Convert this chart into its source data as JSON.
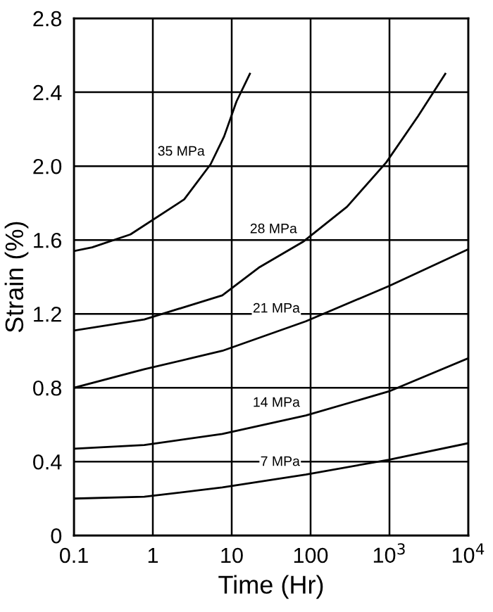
{
  "chart_data": {
    "type": "line",
    "xlabel": "Time (Hr)",
    "ylabel": "Strain (%)",
    "log": "x",
    "xlim": [
      0.1,
      10000
    ],
    "ylim": [
      0,
      2.8
    ],
    "xticks": [
      0.1,
      1,
      10,
      100,
      {
        "value": 1000,
        "label": "10$^{3}$"
      },
      {
        "value": 10000,
        "label": "10$^{4}$"
      }
    ],
    "yticks": [
      0,
      0.4,
      0.8,
      1.2,
      1.6,
      {
        "value": 2,
        "label": "2.0"
      },
      2.4,
      2.8
    ],
    "grid": true,
    "marker": "none",
    "line_style": "solid",
    "series": [
      {
        "name": "35 MPa",
        "color": "#000000",
        "x": [
          0.1,
          0.17,
          0.52,
          2.5,
          5.4,
          8,
          11.5,
          17
        ],
        "values": [
          1.54,
          1.56,
          1.63,
          1.82,
          2.01,
          2.16,
          2.35,
          2.5
        ]
      },
      {
        "name": "28 MPa",
        "color": "#000000",
        "x": [
          0.1,
          0.78,
          7.6,
          22,
          80,
          290,
          910,
          2300,
          5100
        ],
        "values": [
          1.11,
          1.17,
          1.3,
          1.45,
          1.59,
          1.78,
          2.02,
          2.27,
          2.5
        ]
      },
      {
        "name": "21 MPa",
        "color": "#000000",
        "x": [
          0.1,
          0.78,
          7.6,
          87,
          980,
          10000
        ],
        "values": [
          0.8,
          0.9,
          1.0,
          1.16,
          1.35,
          1.55
        ]
      },
      {
        "name": "14 MPa",
        "color": "#000000",
        "x": [
          0.1,
          0.78,
          7.6,
          87,
          980,
          10000
        ],
        "values": [
          0.47,
          0.49,
          0.55,
          0.65,
          0.78,
          0.96
        ]
      },
      {
        "name": "7 MPa",
        "color": "#000000",
        "x": [
          0.1,
          0.78,
          7.6,
          87,
          980,
          10000
        ],
        "values": [
          0.2,
          0.21,
          0.26,
          0.33,
          0.41,
          0.5
        ]
      }
    ]
  }
}
